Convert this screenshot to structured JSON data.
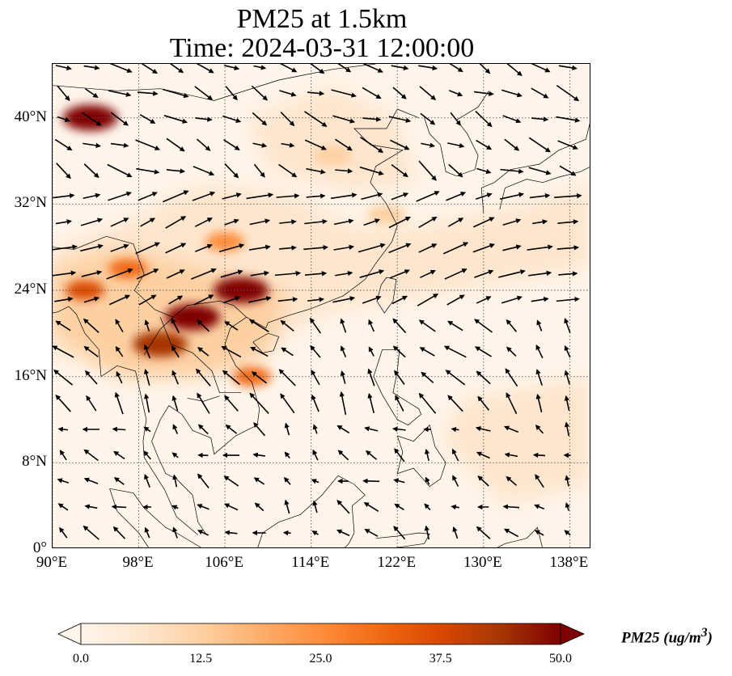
{
  "title": {
    "line1": "PM25 at 1.5km",
    "line2": "Time: 2024-03-31 12:00:00"
  },
  "map": {
    "extent": {
      "lon": [
        90,
        140
      ],
      "lat": [
        0,
        45
      ]
    },
    "gridlines": true,
    "gridline_style": "dotted",
    "lat_ticks": [
      {
        "value": 0,
        "label": "0°"
      },
      {
        "value": 8,
        "label": "8°N"
      },
      {
        "value": 16,
        "label": "16°N"
      },
      {
        "value": 24,
        "label": "24°N"
      },
      {
        "value": 32,
        "label": "32°N"
      },
      {
        "value": 40,
        "label": "40°N"
      }
    ],
    "lon_ticks": [
      {
        "value": 90,
        "label": "90°E"
      },
      {
        "value": 98,
        "label": "98°E"
      },
      {
        "value": 106,
        "label": "106°E"
      },
      {
        "value": 114,
        "label": "114°E"
      },
      {
        "value": 122,
        "label": "122°E"
      },
      {
        "value": 130,
        "label": "130°E"
      },
      {
        "value": 138,
        "label": "138°E"
      }
    ],
    "field": "PM25 concentration",
    "overlay": "wind vectors",
    "high_pm25_regions": [
      {
        "lon": 93.5,
        "lat": 40,
        "value": 50
      },
      {
        "lon": 103,
        "lat": 21.5,
        "value": 50
      },
      {
        "lon": 107.5,
        "lat": 24,
        "value": 48
      },
      {
        "lon": 100,
        "lat": 19,
        "value": 45
      },
      {
        "lon": 93,
        "lat": 24,
        "value": 35
      },
      {
        "lon": 97,
        "lat": 26,
        "value": 32
      },
      {
        "lon": 106,
        "lat": 28.5,
        "value": 28
      },
      {
        "lon": 116,
        "lat": 36.5,
        "value": 15
      },
      {
        "lon": 121,
        "lat": 31,
        "value": 14
      },
      {
        "lon": 108.5,
        "lat": 16,
        "value": 30
      }
    ]
  },
  "colorbar": {
    "label": "PM25 (ug/m",
    "label_exp": "3",
    "label_close": ")",
    "min": 0,
    "max": 50,
    "extend": "both",
    "colormap": "OrRd",
    "colors": [
      "#fff5eb",
      "#fee6ce",
      "#fdd0a2",
      "#fdae6b",
      "#fd8d3c",
      "#f16913",
      "#d94801",
      "#a63603",
      "#7f0000"
    ],
    "ticks": [
      "0.0",
      "12.5",
      "25.0",
      "37.5",
      "50.0"
    ]
  }
}
